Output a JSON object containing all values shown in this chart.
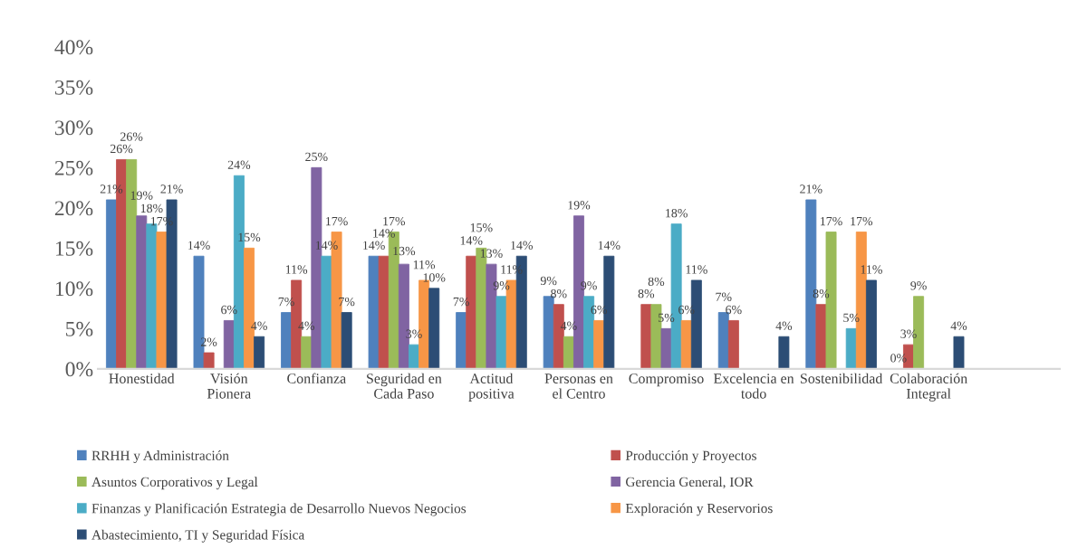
{
  "chart_data": {
    "type": "bar",
    "categories": [
      "Honestidad",
      "Visión\nPionera",
      "Confianza",
      "Seguridad en\nCada Paso",
      "Actitud\npositiva",
      "Personas en\nel Centro",
      "Compromiso",
      "Excelencia en\ntodo",
      "Sostenibilidad",
      "Colaboración\nIntegral",
      null
    ],
    "series": [
      {
        "name": "RRHH y Administración",
        "color": "#4f81bd",
        "values": [
          21,
          14,
          7,
          14,
          7,
          9,
          null,
          7,
          21,
          0,
          null
        ],
        "value_labels": [
          "21%",
          "14%",
          "7%",
          "14%",
          "7%",
          "9%",
          null,
          "7%",
          "21%",
          "0%",
          null
        ]
      },
      {
        "name": "Producción y Proyectos",
        "color": "#c0504d",
        "values": [
          26,
          2,
          11,
          14,
          14,
          8,
          8,
          6,
          8,
          3,
          null
        ],
        "value_labels": [
          "26%",
          "2%",
          "11%",
          "14%",
          "14%",
          "8%",
          "8%",
          "6%",
          "8%",
          "3%",
          null
        ]
      },
      {
        "name": "Asuntos Corporativos y Legal",
        "color": "#9bbb59",
        "values": [
          26,
          null,
          4,
          17,
          15,
          4,
          8,
          null,
          17,
          9,
          null
        ],
        "value_labels": [
          "26%",
          null,
          "4%",
          "17%",
          "15%",
          "4%",
          "8%",
          null,
          "17%",
          "9%",
          null
        ]
      },
      {
        "name": "Gerencia General, IOR",
        "color": "#8064a2",
        "values": [
          19,
          6,
          25,
          13,
          13,
          19,
          5,
          null,
          null,
          null,
          null
        ],
        "value_labels": [
          "19%",
          "6%",
          "25%",
          "13%",
          "13%",
          "19%",
          "5%",
          null,
          null,
          null,
          null
        ]
      },
      {
        "name": "Finanzas y Planificación Estrategia de Desarrollo Nuevos Negocios",
        "color": "#4bacc6",
        "values": [
          18,
          24,
          14,
          3,
          9,
          9,
          18,
          null,
          5,
          null,
          null
        ],
        "value_labels": [
          "18%",
          "24%",
          "14%",
          "3%",
          "9%",
          "9%",
          "18%",
          null,
          "5%",
          null,
          null
        ]
      },
      {
        "name": "Exploración y Reservorios",
        "color": "#f79646",
        "values": [
          17,
          15,
          17,
          11,
          11,
          6,
          6,
          null,
          17,
          null,
          null
        ],
        "value_labels": [
          "17%",
          "15%",
          "17%",
          "11%",
          "11%",
          "6%",
          "6%",
          null,
          "17%",
          null,
          null
        ]
      },
      {
        "name": "Abastecimiento, TI y Seguridad Física",
        "color": "#2c4d75",
        "values": [
          21,
          4,
          7,
          10,
          14,
          14,
          11,
          4,
          11,
          4,
          null
        ],
        "value_labels": [
          "21%",
          "4%",
          "7%",
          "10%",
          "14%",
          "14%",
          "11%",
          "4%",
          "11%",
          "4%",
          null
        ]
      }
    ],
    "ylim": [
      0,
      40
    ],
    "yticks": [
      {
        "value": 0,
        "label": "0%"
      },
      {
        "value": 5,
        "label": "5%"
      },
      {
        "value": 10,
        "label": "10%"
      },
      {
        "value": 15,
        "label": "15%"
      },
      {
        "value": 20,
        "label": "20%"
      },
      {
        "value": 25,
        "label": "25%"
      },
      {
        "value": 30,
        "label": "30%"
      },
      {
        "value": 35,
        "label": "35%"
      },
      {
        "value": 40,
        "label": "40%"
      }
    ],
    "grid": false,
    "legend": "bottom"
  }
}
